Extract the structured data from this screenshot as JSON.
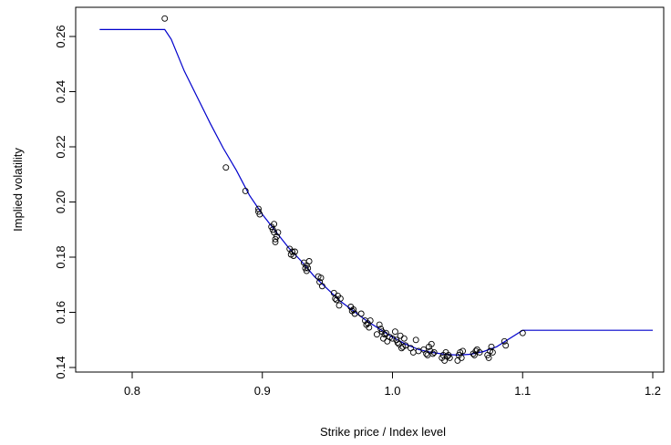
{
  "chart_data": {
    "type": "scatter",
    "title": "",
    "xlabel": "Strike price / Index level",
    "ylabel": "Implied volatility",
    "xlim": [
      0.77,
      1.2
    ],
    "ylim": [
      0.14,
      0.266
    ],
    "x_ticks": [
      0.8,
      0.9,
      1.0,
      1.1,
      1.2
    ],
    "x_tick_labels": [
      "0.8",
      "0.9",
      "1.0",
      "1.1",
      "1.2"
    ],
    "y_ticks": [
      0.14,
      0.16,
      0.18,
      0.2,
      0.22,
      0.24,
      0.26
    ],
    "y_tick_labels": [
      "0.14",
      "0.16",
      "0.18",
      "0.20",
      "0.22",
      "0.24",
      "0.26"
    ],
    "grid": false,
    "legend": "none",
    "colors": {
      "points": "#000000",
      "curve": "#0000cc"
    },
    "series": [
      {
        "kind": "points",
        "marker": "open-circle",
        "points": [
          [
            0.825,
            0.2665
          ],
          [
            0.872,
            0.2125
          ],
          [
            0.887,
            0.204
          ],
          [
            0.897,
            0.1975
          ],
          [
            0.897,
            0.1965
          ],
          [
            0.898,
            0.1955
          ],
          [
            0.907,
            0.191
          ],
          [
            0.908,
            0.19
          ],
          [
            0.909,
            0.189
          ],
          [
            0.909,
            0.192
          ],
          [
            0.91,
            0.1865
          ],
          [
            0.91,
            0.1855
          ],
          [
            0.911,
            0.1875
          ],
          [
            0.912,
            0.189
          ],
          [
            0.921,
            0.183
          ],
          [
            0.922,
            0.181
          ],
          [
            0.923,
            0.182
          ],
          [
            0.924,
            0.1805
          ],
          [
            0.925,
            0.182
          ],
          [
            0.932,
            0.178
          ],
          [
            0.933,
            0.176
          ],
          [
            0.934,
            0.177
          ],
          [
            0.934,
            0.175
          ],
          [
            0.935,
            0.176
          ],
          [
            0.936,
            0.1785
          ],
          [
            0.943,
            0.173
          ],
          [
            0.944,
            0.171
          ],
          [
            0.945,
            0.1725
          ],
          [
            0.946,
            0.1695
          ],
          [
            0.955,
            0.167
          ],
          [
            0.956,
            0.165
          ],
          [
            0.957,
            0.1645
          ],
          [
            0.958,
            0.166
          ],
          [
            0.959,
            0.1625
          ],
          [
            0.96,
            0.165
          ],
          [
            0.968,
            0.162
          ],
          [
            0.969,
            0.1605
          ],
          [
            0.97,
            0.161
          ],
          [
            0.971,
            0.1595
          ],
          [
            0.976,
            0.1595
          ],
          [
            0.979,
            0.157
          ],
          [
            0.98,
            0.1555
          ],
          [
            0.981,
            0.156
          ],
          [
            0.982,
            0.1545
          ],
          [
            0.983,
            0.157
          ],
          [
            0.988,
            0.152
          ],
          [
            0.99,
            0.1555
          ],
          [
            0.991,
            0.154
          ],
          [
            0.992,
            0.153
          ],
          [
            0.993,
            0.1505
          ],
          [
            0.994,
            0.152
          ],
          [
            0.995,
            0.1525
          ],
          [
            0.996,
            0.1495
          ],
          [
            0.998,
            0.151
          ],
          [
            1.0,
            0.1505
          ],
          [
            1.002,
            0.153
          ],
          [
            1.003,
            0.15
          ],
          [
            1.004,
            0.149
          ],
          [
            1.005,
            0.1485
          ],
          [
            1.006,
            0.1515
          ],
          [
            1.007,
            0.147
          ],
          [
            1.008,
            0.1475
          ],
          [
            1.009,
            0.1505
          ],
          [
            1.01,
            0.148
          ],
          [
            1.014,
            0.147
          ],
          [
            1.016,
            0.1455
          ],
          [
            1.018,
            0.15
          ],
          [
            1.02,
            0.146
          ],
          [
            1.024,
            0.1465
          ],
          [
            1.026,
            0.145
          ],
          [
            1.027,
            0.1445
          ],
          [
            1.028,
            0.1475
          ],
          [
            1.029,
            0.146
          ],
          [
            1.03,
            0.1485
          ],
          [
            1.031,
            0.145
          ],
          [
            1.032,
            0.1455
          ],
          [
            1.038,
            0.1435
          ],
          [
            1.039,
            0.1445
          ],
          [
            1.04,
            0.1425
          ],
          [
            1.041,
            0.1455
          ],
          [
            1.042,
            0.144
          ],
          [
            1.043,
            0.1445
          ],
          [
            1.044,
            0.1435
          ],
          [
            1.05,
            0.1425
          ],
          [
            1.051,
            0.1445
          ],
          [
            1.052,
            0.1455
          ],
          [
            1.053,
            0.1435
          ],
          [
            1.054,
            0.146
          ],
          [
            1.062,
            0.145
          ],
          [
            1.063,
            0.1445
          ],
          [
            1.064,
            0.146
          ],
          [
            1.065,
            0.1465
          ],
          [
            1.067,
            0.1455
          ],
          [
            1.073,
            0.1445
          ],
          [
            1.074,
            0.1435
          ],
          [
            1.075,
            0.146
          ],
          [
            1.076,
            0.1475
          ],
          [
            1.077,
            0.1455
          ],
          [
            1.086,
            0.1495
          ],
          [
            1.087,
            0.148
          ],
          [
            1.1,
            0.1525
          ]
        ]
      },
      {
        "kind": "line",
        "points": [
          [
            0.775,
            0.2625
          ],
          [
            0.825,
            0.2625
          ],
          [
            0.83,
            0.259
          ],
          [
            0.84,
            0.2475
          ],
          [
            0.85,
            0.238
          ],
          [
            0.86,
            0.2285
          ],
          [
            0.87,
            0.2195
          ],
          [
            0.88,
            0.2115
          ],
          [
            0.89,
            0.2025
          ],
          [
            0.9,
            0.1955
          ],
          [
            0.91,
            0.1895
          ],
          [
            0.92,
            0.1835
          ],
          [
            0.93,
            0.1785
          ],
          [
            0.94,
            0.173
          ],
          [
            0.95,
            0.1685
          ],
          [
            0.96,
            0.164
          ],
          [
            0.97,
            0.1605
          ],
          [
            0.98,
            0.157
          ],
          [
            0.99,
            0.154
          ],
          [
            1.0,
            0.151
          ],
          [
            1.01,
            0.1485
          ],
          [
            1.02,
            0.1465
          ],
          [
            1.03,
            0.1455
          ],
          [
            1.04,
            0.1448
          ],
          [
            1.05,
            0.1445
          ],
          [
            1.06,
            0.1448
          ],
          [
            1.07,
            0.1458
          ],
          [
            1.08,
            0.1475
          ],
          [
            1.09,
            0.1505
          ],
          [
            1.1,
            0.1535
          ],
          [
            1.2,
            0.1535
          ]
        ]
      }
    ]
  }
}
